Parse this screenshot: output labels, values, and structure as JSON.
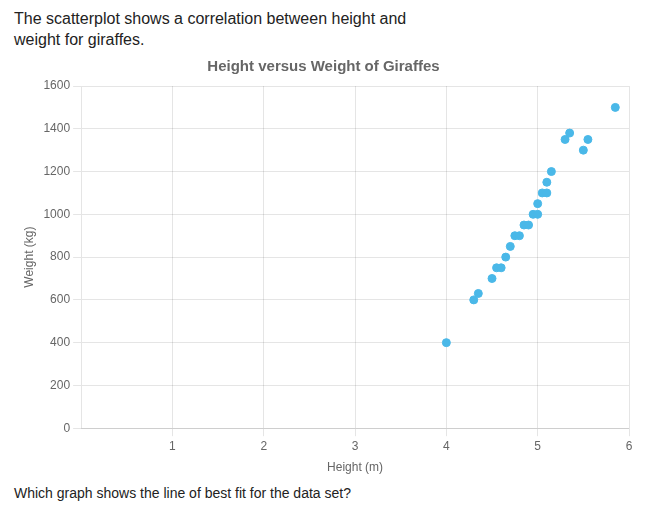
{
  "chart_data": {
    "type": "scatter",
    "title": "Height versus Weight of Giraffes",
    "x_label": "Height (m)",
    "y_label": "Weight (kg)",
    "annotations": [
      "The scatterplot shows a correlation between height and",
      "weight for giraffes.",
      "Which graph shows the line of best fit for the data set?"
    ],
    "x": [
      4.0,
      4.3,
      4.35,
      4.5,
      4.55,
      4.6,
      4.65,
      4.7,
      4.75,
      4.8,
      4.85,
      4.9,
      4.95,
      5.0,
      5.0,
      5.05,
      5.1,
      5.1,
      5.15,
      5.3,
      5.35,
      5.5,
      5.55,
      5.85
    ],
    "values": [
      400,
      600,
      630,
      700,
      750,
      750,
      800,
      850,
      900,
      900,
      950,
      950,
      1000,
      1000,
      1050,
      1100,
      1100,
      1150,
      1200,
      1350,
      1380,
      1300,
      1350,
      1500
    ],
    "color": "#4ab8e8",
    "xlim": [
      0,
      6
    ],
    "ylim": [
      0,
      1600
    ],
    "xticks": [
      1,
      2,
      3,
      4,
      5,
      6
    ],
    "yticks": [
      0,
      200,
      400,
      600,
      800,
      1000,
      1200,
      1400,
      1600
    ],
    "grid": true
  }
}
